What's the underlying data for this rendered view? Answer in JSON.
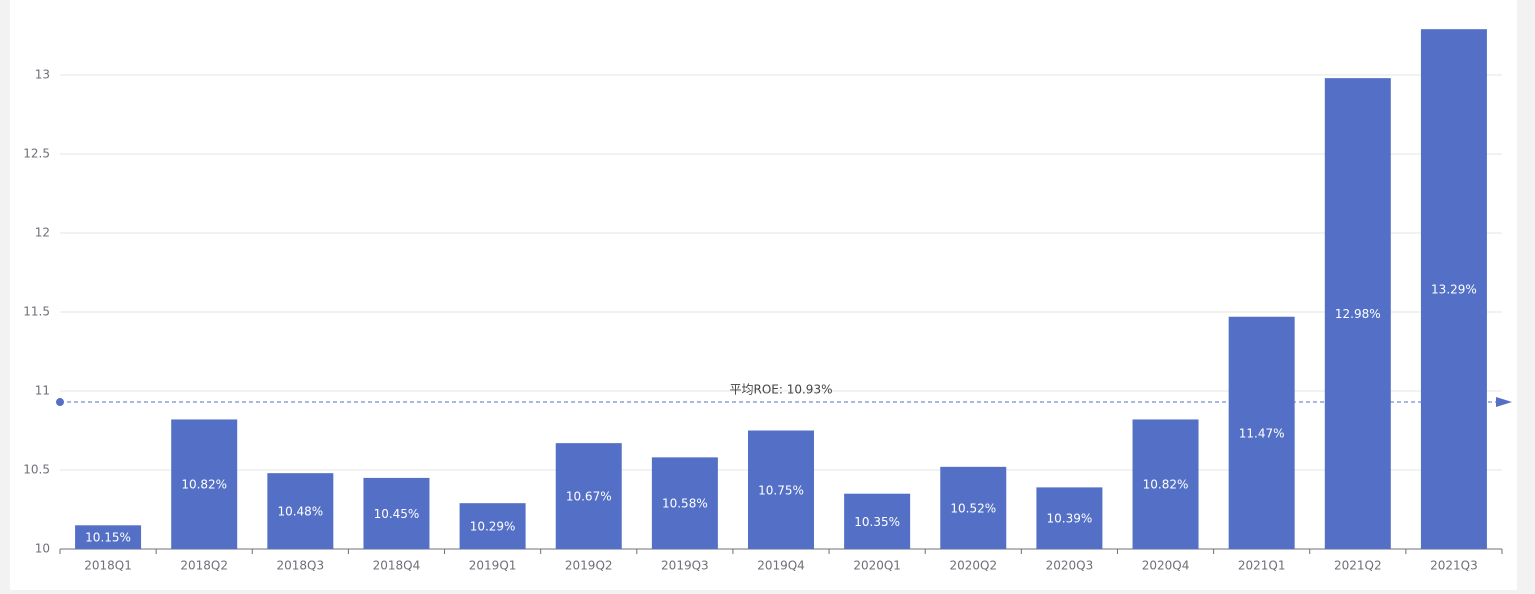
{
  "chart_data": {
    "type": "bar",
    "categories": [
      "2018Q1",
      "2018Q2",
      "2018Q3",
      "2018Q4",
      "2019Q1",
      "2019Q2",
      "2019Q3",
      "2019Q4",
      "2020Q1",
      "2020Q2",
      "2020Q3",
      "2020Q4",
      "2021Q1",
      "2021Q2",
      "2021Q3"
    ],
    "values": [
      10.15,
      10.82,
      10.48,
      10.45,
      10.29,
      10.67,
      10.58,
      10.75,
      10.35,
      10.52,
      10.39,
      10.82,
      11.47,
      12.98,
      13.29
    ],
    "value_labels": [
      "10.15%",
      "10.82%",
      "10.48%",
      "10.45%",
      "10.29%",
      "10.67%",
      "10.58%",
      "10.75%",
      "10.35%",
      "10.52%",
      "10.39%",
      "10.82%",
      "11.47%",
      "12.98%",
      "13.29%"
    ],
    "color": "#5470c6",
    "ylim": [
      10,
      13.5
    ],
    "yticks": [
      10,
      10.5,
      11,
      11.5,
      12,
      12.5,
      13
    ],
    "grid": true,
    "average_line": {
      "value": 10.93,
      "label": "平均ROE: 10.93%"
    }
  }
}
